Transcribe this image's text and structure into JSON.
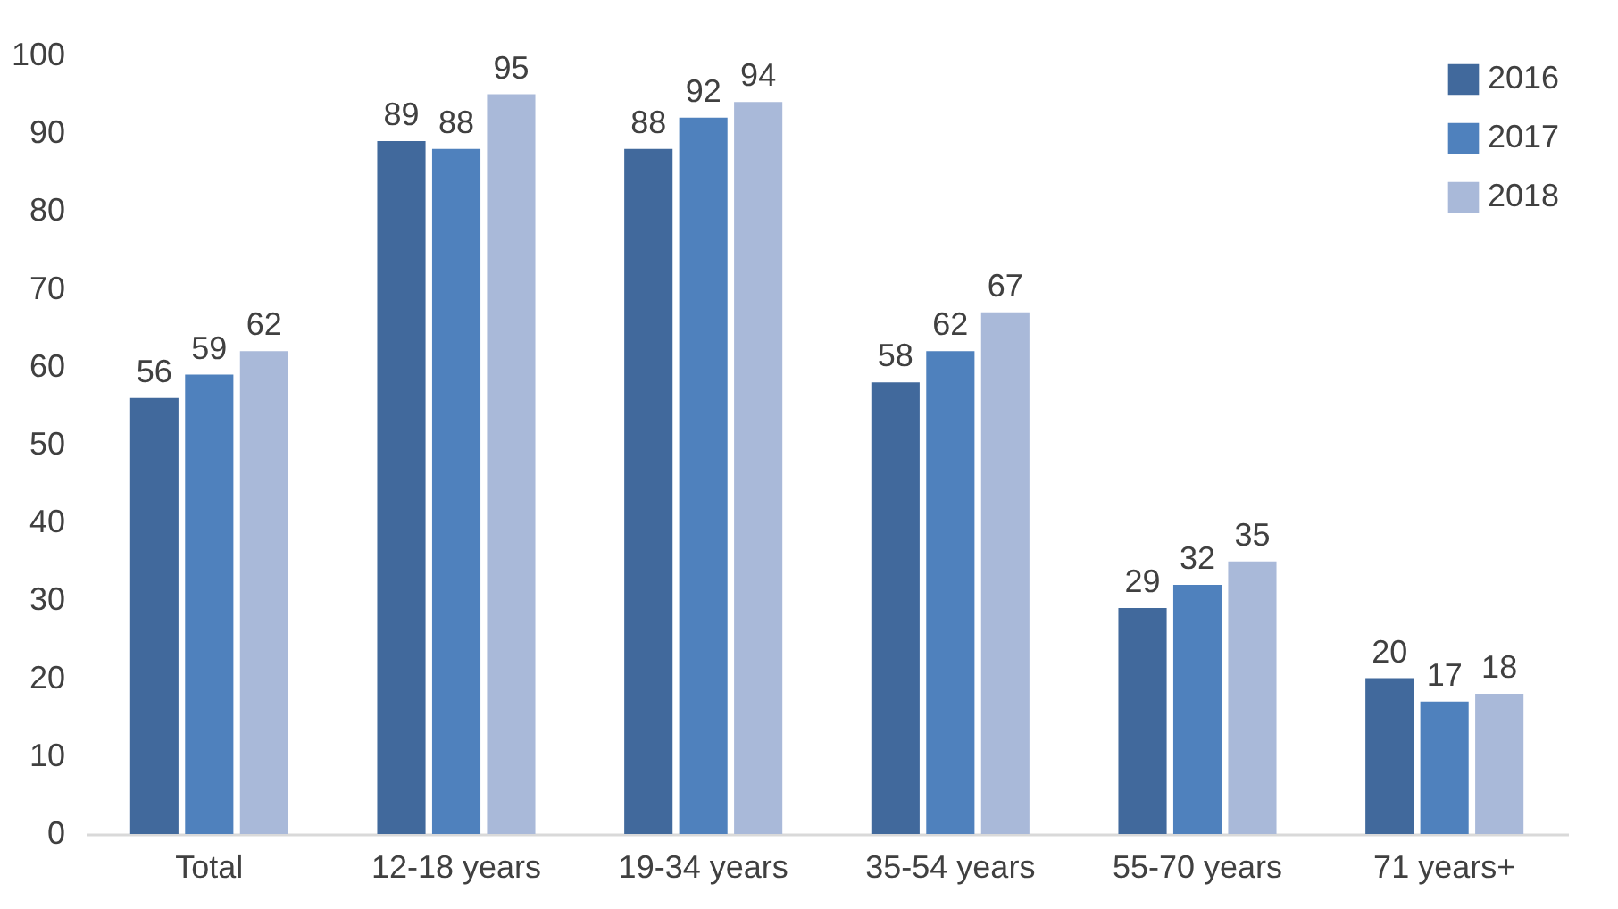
{
  "chart_data": {
    "type": "bar",
    "categories": [
      "Total",
      "12-18 years",
      "19-34 years",
      "35-54 years",
      "55-70 years",
      "71 years+"
    ],
    "series": [
      {
        "name": "2016",
        "color": "#41699c",
        "values": [
          56,
          89,
          88,
          58,
          29,
          20
        ]
      },
      {
        "name": "2017",
        "color": "#4f81bd",
        "values": [
          59,
          88,
          92,
          62,
          32,
          17
        ]
      },
      {
        "name": "2018",
        "color": "#a9b9d9",
        "values": [
          62,
          95,
          94,
          67,
          35,
          18
        ]
      }
    ],
    "ylim": [
      0,
      100
    ],
    "yticks": [
      0,
      10,
      20,
      30,
      40,
      50,
      60,
      70,
      80,
      90,
      100
    ],
    "data_labels": true,
    "grid": false,
    "legend": "top right"
  }
}
